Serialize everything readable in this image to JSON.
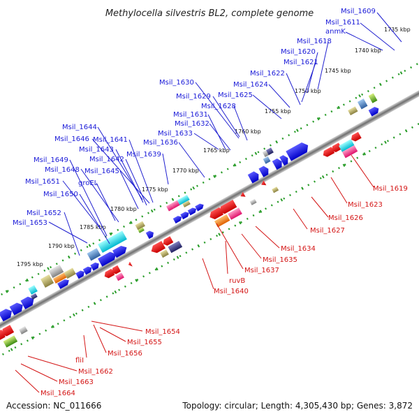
{
  "title": "Methylocella silvestris BL2, complete genome",
  "footer": {
    "accession": "Accession: NC_011666",
    "summary": "Topology: circular; Length: 4,305,430 bp; Genes: 3,872"
  },
  "colors": {
    "forward_label": "#1a1ad8",
    "reverse_label": "#d41515",
    "backbone": "#8c8c8c",
    "tick": "#2a9d2a"
  },
  "kbp_ticks": [
    "1735 kbp",
    "1740 kbp",
    "1745 kbp",
    "1750 kbp",
    "1755 kbp",
    "1760 kbp",
    "1765 kbp",
    "1770 kbp",
    "1775 kbp",
    "1780 kbp",
    "1785 kbp",
    "1790 kbp",
    "1795 kbp"
  ],
  "forward_labels": [
    "Msil_1609",
    "Msil_1611",
    "anmK",
    "Msil_1618",
    "Msil_1620",
    "Msil_1621",
    "Msil_1622",
    "Msil_1624",
    "Msil_1625",
    "Msil_1630",
    "Msil_1629",
    "Msil_1628",
    "Msil_1631",
    "Msil_1632",
    "Msil_1633",
    "Msil_1636",
    "Msil_1639",
    "Msil_1644",
    "Msil_1646",
    "Msil_1641",
    "Msil_1643",
    "Msil_1642",
    "Msil_1649",
    "Msil_1645",
    "Msil_1648",
    "groEL",
    "Msil_1651",
    "Msil_1650",
    "Msil_1652",
    "Msil_1653"
  ],
  "reverse_labels": [
    "Msil_1619",
    "Msil_1623",
    "Msil_1626",
    "Msil_1627",
    "Msil_1634",
    "Msil_1635",
    "Msil_1637",
    "ruvB",
    "Msil_1640",
    "Msil_1654",
    "Msil_1655",
    "Msil_1656",
    "fliI",
    "Msil_1662",
    "Msil_1663",
    "Msil_1664"
  ]
}
